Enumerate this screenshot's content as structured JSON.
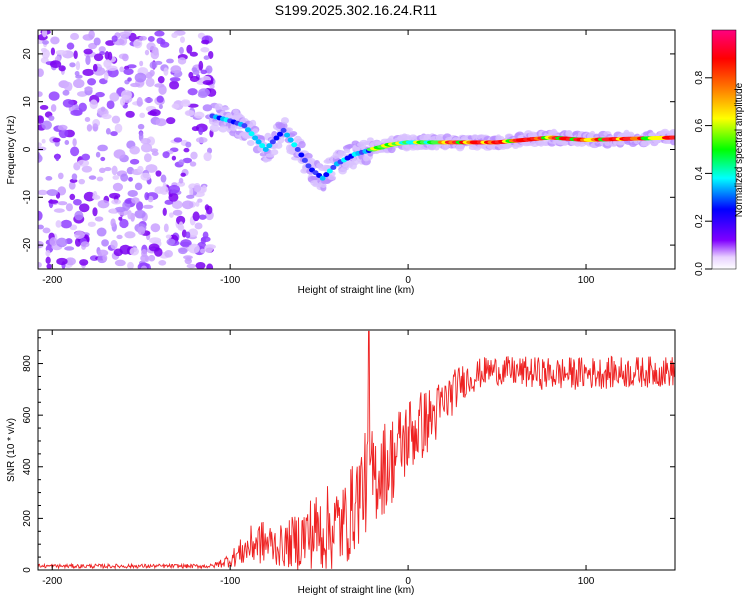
{
  "title": "S199.2025.302.16.24.R11",
  "chart_data": [
    {
      "type": "heatmap",
      "xlabel": "Height of straight line (km)",
      "ylabel": "Frequency (Hz)",
      "xlim": [
        -208,
        150
      ],
      "ylim": [
        -25,
        25
      ],
      "xticks": [
        -200,
        -100,
        0,
        100
      ],
      "yticks": [
        -20,
        -10,
        0,
        10,
        20
      ],
      "noise_region_x": [
        -208,
        -110
      ],
      "ridge_trace": [
        {
          "x": -110,
          "y": 7
        },
        {
          "x": -100,
          "y": 6
        },
        {
          "x": -92,
          "y": 5
        },
        {
          "x": -85,
          "y": 2
        },
        {
          "x": -80,
          "y": 0
        },
        {
          "x": -70,
          "y": 4
        },
        {
          "x": -62,
          "y": 0
        },
        {
          "x": -55,
          "y": -4
        },
        {
          "x": -48,
          "y": -6
        },
        {
          "x": -40,
          "y": -3
        },
        {
          "x": -30,
          "y": -1
        },
        {
          "x": -20,
          "y": 0
        },
        {
          "x": -10,
          "y": 1
        },
        {
          "x": 0,
          "y": 1.5
        },
        {
          "x": 25,
          "y": 1.5
        },
        {
          "x": 50,
          "y": 1.5
        },
        {
          "x": 80,
          "y": 2.5
        },
        {
          "x": 100,
          "y": 2
        },
        {
          "x": 150,
          "y": 2.5
        }
      ],
      "colorbar": {
        "label": "Normalized spectral amplitude",
        "ticks": [
          0.0,
          0.2,
          0.4,
          0.6,
          0.8
        ],
        "range": [
          0,
          1
        ],
        "colors": [
          "#ffffff",
          "#8000ff",
          "#0000ff",
          "#00ffff",
          "#00ff00",
          "#ffff00",
          "#ff8000",
          "#ff0000",
          "#ff0080"
        ]
      }
    },
    {
      "type": "line",
      "xlabel": "Height of straight line (km)",
      "ylabel": "SNR (10 * v/v)",
      "xlim": [
        -208,
        150
      ],
      "ylim": [
        0,
        930
      ],
      "xticks": [
        -200,
        -100,
        0,
        100
      ],
      "yticks": [
        0,
        200,
        400,
        600,
        800
      ],
      "color": "#ee2222",
      "spike": {
        "x": -22,
        "y": 925
      },
      "envelope": [
        {
          "x": -208,
          "mean": 15,
          "amp": 8
        },
        {
          "x": -110,
          "mean": 15,
          "amp": 8
        },
        {
          "x": -100,
          "mean": 40,
          "amp": 30
        },
        {
          "x": -85,
          "mean": 110,
          "amp": 90
        },
        {
          "x": -70,
          "mean": 90,
          "amp": 80
        },
        {
          "x": -55,
          "mean": 140,
          "amp": 150
        },
        {
          "x": -45,
          "mean": 160,
          "amp": 170
        },
        {
          "x": -35,
          "mean": 180,
          "amp": 170
        },
        {
          "x": -25,
          "mean": 330,
          "amp": 200
        },
        {
          "x": -10,
          "mean": 420,
          "amp": 180
        },
        {
          "x": 0,
          "mean": 520,
          "amp": 160
        },
        {
          "x": 15,
          "mean": 600,
          "amp": 120
        },
        {
          "x": 30,
          "mean": 730,
          "amp": 70
        },
        {
          "x": 45,
          "mean": 775,
          "amp": 55
        },
        {
          "x": 80,
          "mean": 760,
          "amp": 65
        },
        {
          "x": 150,
          "mean": 770,
          "amp": 60
        }
      ]
    }
  ]
}
